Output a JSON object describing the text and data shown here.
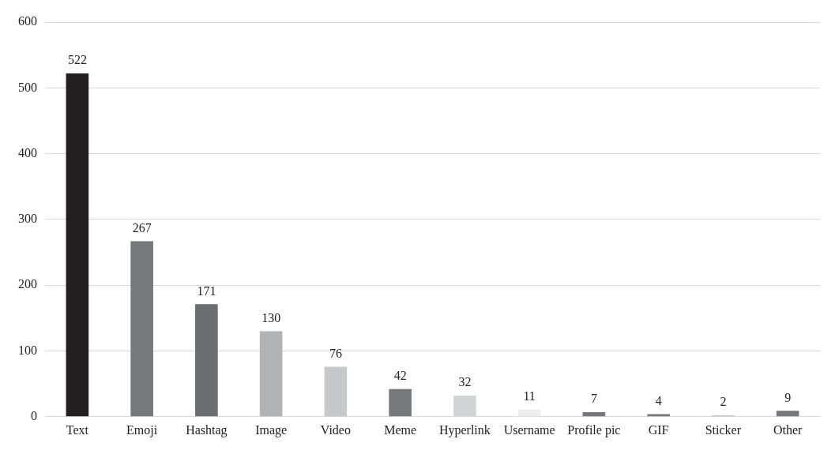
{
  "chart_data": {
    "type": "bar",
    "categories": [
      "Text",
      "Emoji",
      "Hashtag",
      "Image",
      "Video",
      "Meme",
      "Hyperlink",
      "Username",
      "Profile pic",
      "GIF",
      "Sticker",
      "Other"
    ],
    "values": [
      522,
      267,
      171,
      130,
      76,
      42,
      32,
      11,
      7,
      4,
      2,
      9
    ],
    "colors": [
      "#231f20",
      "#77787b",
      "#6d6e71",
      "#b1b3b6",
      "#c7c8ca",
      "#77787b",
      "#d1d3d4",
      "#ededee",
      "#77787b",
      "#77787b",
      "#b1b3b6",
      "#77787b"
    ],
    "ylim": [
      0,
      600
    ],
    "yticks": [
      0,
      100,
      200,
      300,
      400,
      500,
      600
    ],
    "grid": "y",
    "data_labels": true,
    "legend": false
  }
}
